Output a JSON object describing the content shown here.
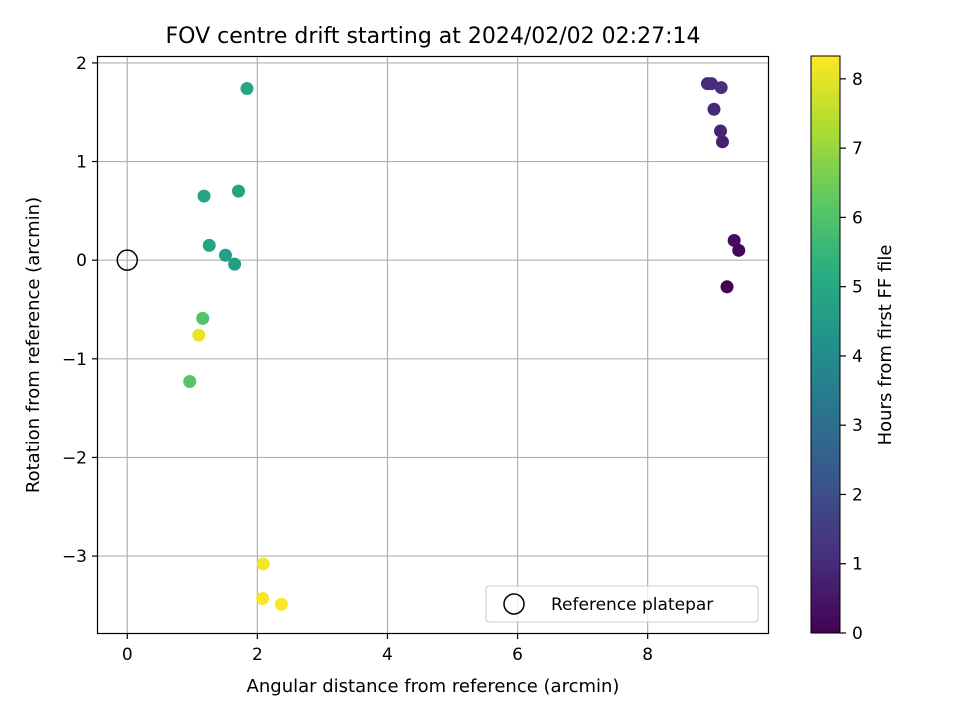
{
  "chart_data": {
    "type": "scatter",
    "title": "FOV centre drift starting at 2024/02/02 02:27:14",
    "xlabel": "Angular distance from reference (arcmin)",
    "ylabel": "Rotation from reference (arcmin)",
    "xlim": [
      -0.45,
      9.85
    ],
    "ylim": [
      -3.78,
      2.06
    ],
    "xticks": [
      0,
      2,
      4,
      6,
      8
    ],
    "yticks": [
      -3,
      -2,
      -1,
      0,
      1,
      2
    ],
    "xtick_labels": [
      "0",
      "2",
      "4",
      "6",
      "8"
    ],
    "ytick_labels": [
      "−3",
      "−2",
      "−1",
      "0",
      "1",
      "2"
    ],
    "grid": true,
    "colormap": "viridis",
    "colorbar": {
      "label": "Hours from first FF file",
      "min": 0,
      "max": 8.33,
      "ticks": [
        0,
        1,
        2,
        3,
        4,
        5,
        6,
        7,
        8
      ],
      "tick_labels": [
        "0",
        "1",
        "2",
        "3",
        "4",
        "5",
        "6",
        "7",
        "8"
      ]
    },
    "series": [
      {
        "name": "",
        "points": [
          {
            "x": 9.22,
            "y": -0.27,
            "hours": 0.0
          },
          {
            "x": 9.4,
            "y": 0.1,
            "hours": 0.12
          },
          {
            "x": 9.33,
            "y": 0.2,
            "hours": 0.25
          },
          {
            "x": 9.15,
            "y": 1.2,
            "hours": 0.75
          },
          {
            "x": 9.12,
            "y": 1.31,
            "hours": 0.85
          },
          {
            "x": 9.02,
            "y": 1.53,
            "hours": 0.95
          },
          {
            "x": 8.92,
            "y": 1.79,
            "hours": 1.0
          },
          {
            "x": 8.98,
            "y": 1.79,
            "hours": 1.05
          },
          {
            "x": 9.13,
            "y": 1.75,
            "hours": 1.1
          },
          {
            "x": 1.65,
            "y": -0.04,
            "hours": 4.6
          },
          {
            "x": 1.51,
            "y": 0.05,
            "hours": 4.7
          },
          {
            "x": 1.26,
            "y": 0.15,
            "hours": 4.8
          },
          {
            "x": 1.71,
            "y": 0.7,
            "hours": 4.75
          },
          {
            "x": 1.18,
            "y": 0.65,
            "hours": 4.85
          },
          {
            "x": 1.84,
            "y": 1.74,
            "hours": 4.95
          },
          {
            "x": 1.16,
            "y": -0.59,
            "hours": 6.0
          },
          {
            "x": 0.96,
            "y": -1.23,
            "hours": 6.1
          },
          {
            "x": 1.1,
            "y": -0.76,
            "hours": 8.1
          },
          {
            "x": 2.09,
            "y": -3.08,
            "hours": 8.2
          },
          {
            "x": 2.08,
            "y": -3.43,
            "hours": 8.25
          },
          {
            "x": 2.37,
            "y": -3.49,
            "hours": 8.3
          }
        ]
      }
    ],
    "reference_point": {
      "x": 0,
      "y": 0
    },
    "legend": {
      "position": "lower right",
      "entries": [
        "Reference platepar"
      ]
    }
  }
}
